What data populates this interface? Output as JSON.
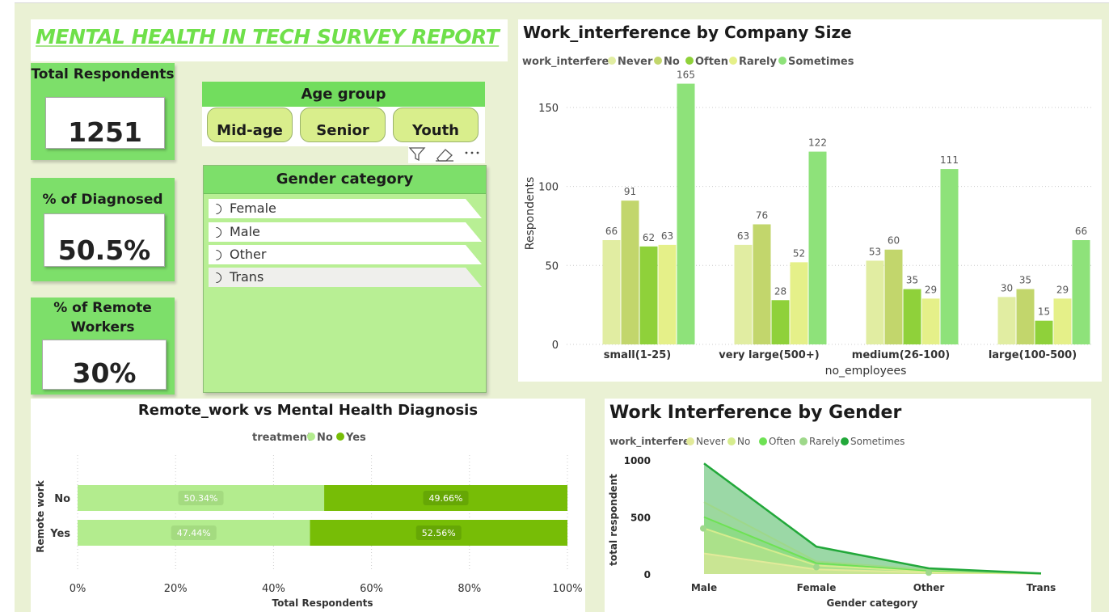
{
  "report_title": "MENTAL HEALTH IN TECH SURVEY REPORT",
  "colors": {
    "never": "#e1eda2",
    "no": "#c2d66c",
    "often": "#8fd13a",
    "rarely": "#e5f089",
    "sometimes": "#8ee27a",
    "treat_no": "#b3ec8e",
    "treat_yes": "#77bd06"
  },
  "kpis": {
    "respondents": {
      "label": "Total Respondents",
      "value": "1251"
    },
    "diagnosed": {
      "label": "% of Diagnosed",
      "value": "50.5%"
    },
    "remote": {
      "label": "% of Remote Workers",
      "value": "30%"
    }
  },
  "age_slicer": {
    "title": "Age group",
    "options": [
      "Mid-age",
      "Senior",
      "Youth"
    ],
    "icons": [
      "filter-icon",
      "eraser-icon",
      "more-options-icon"
    ]
  },
  "gender_slicer": {
    "title": "Gender category",
    "options": [
      "Female",
      "Male",
      "Other",
      "Trans"
    ]
  },
  "chart_data": [
    {
      "type": "bar",
      "title": "Work_interference by Company Size",
      "legend_title": "work_interfere",
      "legend_position": "top-left",
      "xlabel": "no_employees",
      "ylabel": "Respondents",
      "ylim": [
        0,
        175
      ],
      "yticks": [
        0,
        50,
        100,
        150
      ],
      "grid": true,
      "categories": [
        "small(1-25)",
        "very large(500+)",
        "medium(26-100)",
        "large(100-500)"
      ],
      "series": [
        {
          "name": "Never",
          "values": [
            66,
            63,
            53,
            30
          ]
        },
        {
          "name": "No",
          "values": [
            91,
            76,
            60,
            35
          ]
        },
        {
          "name": "Often",
          "values": [
            62,
            28,
            35,
            15
          ]
        },
        {
          "name": "Rarely",
          "values": [
            63,
            52,
            29,
            29
          ]
        },
        {
          "name": "Sometimes",
          "values": [
            165,
            122,
            111,
            66
          ]
        }
      ]
    },
    {
      "type": "bar",
      "orientation": "horizontal-100%-stacked",
      "title": "Remote_work vs Mental Health Diagnosis",
      "legend_title": "treatment",
      "legend_position": "top-center",
      "xlabel": "Total Respondents",
      "ylabel": "Remote work",
      "xticks": [
        "0%",
        "20%",
        "40%",
        "60%",
        "80%",
        "100%"
      ],
      "categories": [
        "No",
        "Yes"
      ],
      "series": [
        {
          "name": "No",
          "values": [
            50.34,
            47.44
          ],
          "labels": [
            "50.34%",
            "47.44%"
          ]
        },
        {
          "name": "Yes",
          "values": [
            49.66,
            52.56
          ],
          "labels": [
            "49.66%",
            "52.56%"
          ]
        }
      ]
    },
    {
      "type": "area",
      "title": "Work Interference by Gender",
      "legend_title": "work_interfere",
      "legend_position": "top-left",
      "xlabel": "Gender category",
      "ylabel": "total respondent",
      "ylim": [
        0,
        1000
      ],
      "yticks": [
        0,
        500,
        1000
      ],
      "categories": [
        "Male",
        "Female",
        "Other",
        "Trans"
      ],
      "series": [
        {
          "name": "Never",
          "values": [
            180,
            40,
            12,
            2
          ]
        },
        {
          "name": "No",
          "values": [
            400,
            75,
            22,
            3
          ]
        },
        {
          "name": "Often",
          "values": [
            500,
            95,
            30,
            4
          ]
        },
        {
          "name": "Rarely",
          "values": [
            630,
            110,
            38,
            4
          ]
        },
        {
          "name": "Sometimes",
          "values": [
            970,
            240,
            50,
            5
          ]
        }
      ]
    }
  ]
}
